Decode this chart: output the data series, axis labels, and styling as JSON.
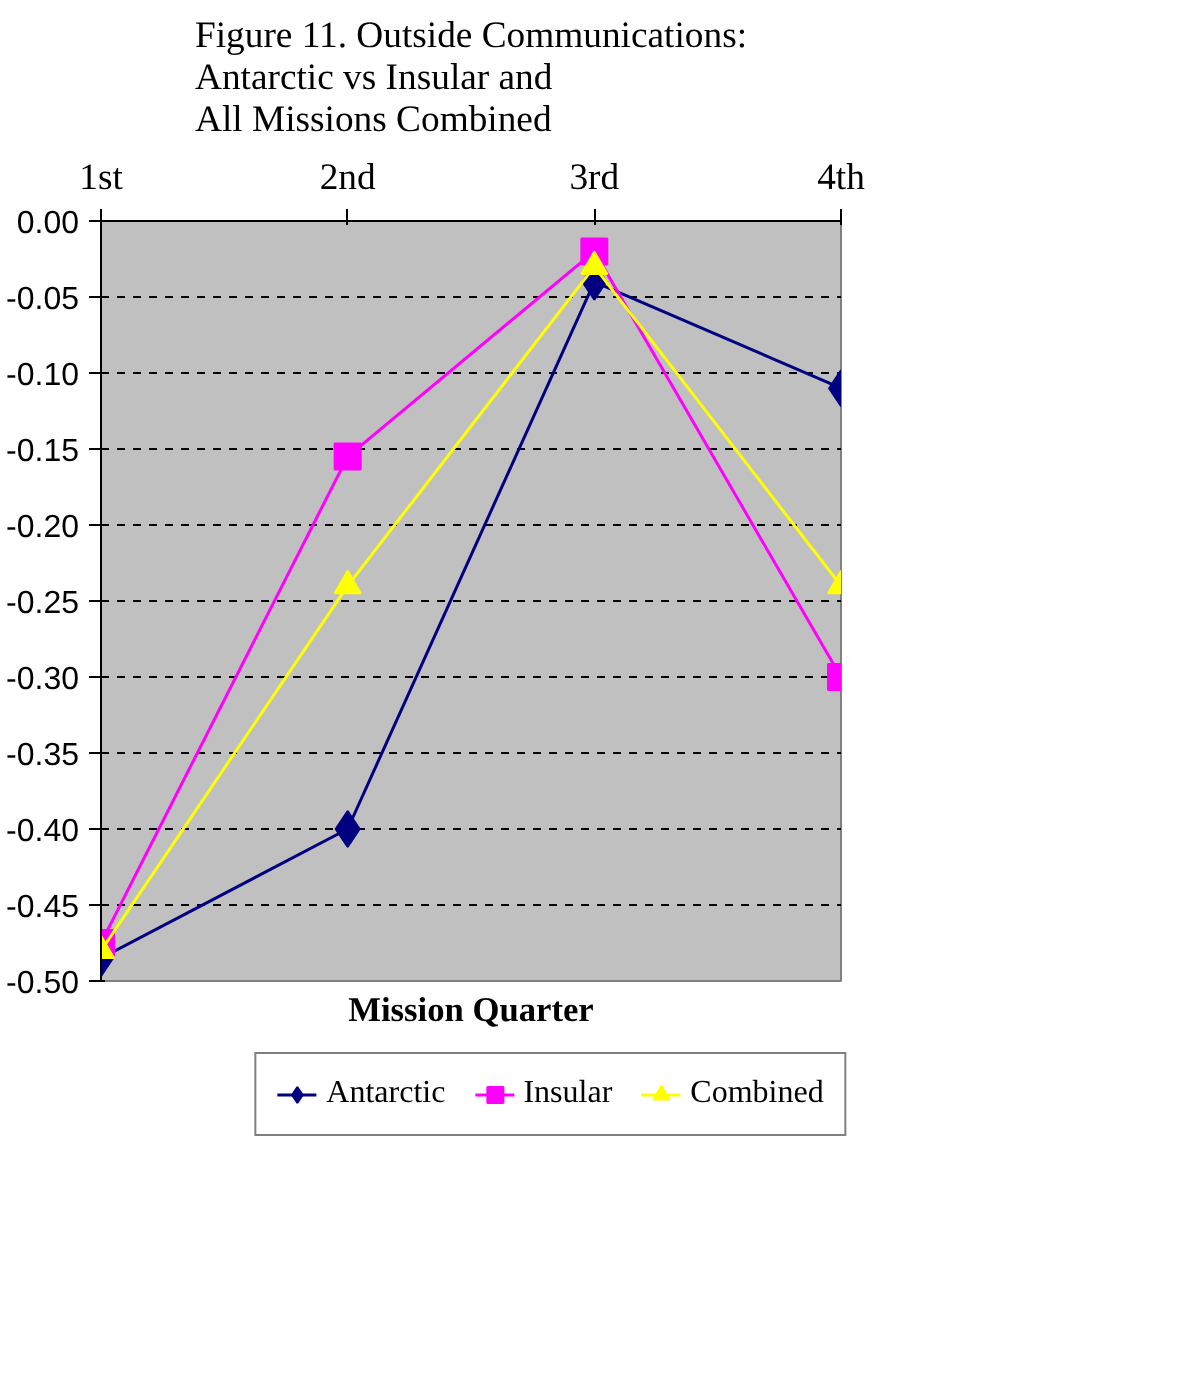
{
  "chart_data": {
    "type": "line",
    "title": "Figure 11. Outside Communications:\nAntarctic vs Insular and\nAll Missions Combined",
    "xlabel": "Mission Quarter",
    "categories": [
      "1st",
      "2nd",
      "3rd",
      "4th"
    ],
    "series": [
      {
        "name": "Antarctic",
        "color": "#000080",
        "marker": "diamond",
        "values": [
          -0.485,
          -0.4,
          -0.04,
          -0.11
        ]
      },
      {
        "name": "Insular",
        "color": "#ff00ff",
        "marker": "square",
        "values": [
          -0.475,
          -0.155,
          -0.02,
          -0.3
        ]
      },
      {
        "name": "Combined",
        "color": "#ffff00",
        "marker": "triangle",
        "values": [
          -0.48,
          -0.24,
          -0.03,
          -0.24
        ]
      }
    ],
    "ylim": [
      -0.5,
      0
    ],
    "yticks": [
      {
        "value": -0.5,
        "label": "-0.50"
      },
      {
        "value": -0.45,
        "label": "-0.45"
      },
      {
        "value": -0.4,
        "label": "-0.40"
      },
      {
        "value": -0.35,
        "label": "-0.35"
      },
      {
        "value": -0.3,
        "label": "-0.30"
      },
      {
        "value": -0.25,
        "label": "-0.25"
      },
      {
        "value": -0.2,
        "label": "-0.20"
      },
      {
        "value": -0.15,
        "label": "-0.15"
      },
      {
        "value": -0.1,
        "label": "-0.10"
      },
      {
        "value": -0.05,
        "label": "-0.05"
      },
      {
        "value": 0,
        "label": "0.00"
      }
    ],
    "grid": "y",
    "legend": "bottom",
    "line_style": "solid"
  }
}
